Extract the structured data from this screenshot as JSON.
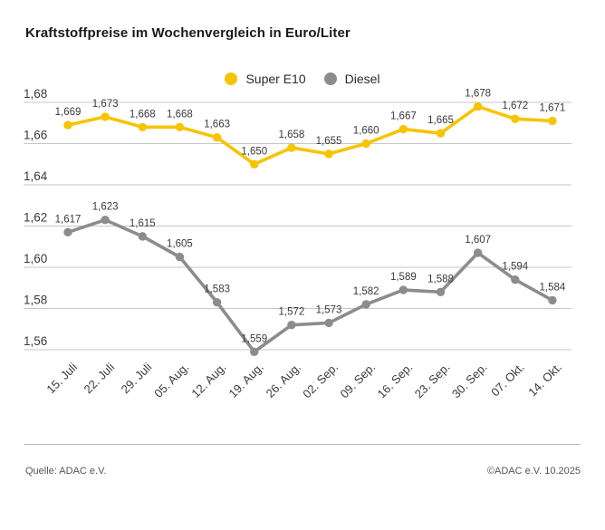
{
  "title": "Kraftstoffpreise im Wochenvergleich in Euro/Liter",
  "legend": {
    "items": [
      {
        "label": "Super E10",
        "color": "#f6c400"
      },
      {
        "label": "Diesel",
        "color": "#8c8c8c"
      }
    ]
  },
  "footer": {
    "source": "Quelle: ADAC e.V.",
    "copyright": "©ADAC e.V. 10.2025"
  },
  "chart_data": {
    "type": "line",
    "title": "Kraftstoffpreise im Wochenvergleich in Euro/Liter",
    "unit": "Euro/Liter",
    "decimal_separator": ",",
    "grid": true,
    "legend_position": "top-center",
    "ylim": [
      1.56,
      1.68
    ],
    "y_ticks": [
      1.68,
      1.66,
      1.64,
      1.62,
      1.6,
      1.58,
      1.56
    ],
    "categories": [
      "15. Juli",
      "22. Juli",
      "29. Juli",
      "05. Aug.",
      "12. Aug.",
      "19. Aug.",
      "26. Aug.",
      "02. Sep.",
      "09. Sep.",
      "16. Sep.",
      "23. Sep.",
      "30. Sep.",
      "07. Okt.",
      "14. Okt."
    ],
    "series": [
      {
        "name": "Super E10",
        "color": "#f6c400",
        "values": [
          1.669,
          1.673,
          1.668,
          1.668,
          1.663,
          1.65,
          1.658,
          1.655,
          1.66,
          1.667,
          1.665,
          1.678,
          1.672,
          1.671
        ]
      },
      {
        "name": "Diesel",
        "color": "#8c8c8c",
        "values": [
          1.617,
          1.623,
          1.615,
          1.605,
          1.583,
          1.559,
          1.572,
          1.573,
          1.582,
          1.589,
          1.588,
          1.607,
          1.594,
          1.584
        ]
      }
    ]
  }
}
